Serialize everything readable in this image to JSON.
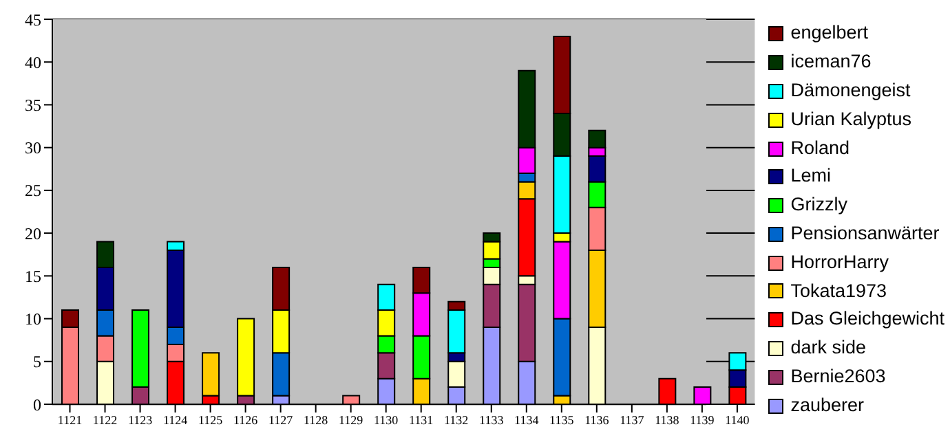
{
  "chart_data": {
    "type": "bar",
    "stacked": true,
    "categories": [
      "1121",
      "1122",
      "1123",
      "1124",
      "1125",
      "1126",
      "1127",
      "1128",
      "1129",
      "1130",
      "1131",
      "1132",
      "1133",
      "1134",
      "1135",
      "1136",
      "1137",
      "1138",
      "1139",
      "1140"
    ],
    "series": [
      {
        "name": "zauberer",
        "color": "#9999ff",
        "values": [
          null,
          null,
          null,
          null,
          null,
          null,
          1,
          null,
          null,
          3,
          null,
          2,
          9,
          5,
          null,
          null,
          null,
          null,
          null,
          null
        ]
      },
      {
        "name": "Bernie2603",
        "color": "#993366",
        "values": [
          null,
          null,
          2,
          null,
          null,
          1,
          null,
          null,
          null,
          3,
          null,
          null,
          5,
          9,
          null,
          null,
          null,
          null,
          null,
          null
        ]
      },
      {
        "name": "dark side",
        "color": "#ffffcc",
        "values": [
          null,
          5,
          null,
          null,
          null,
          null,
          null,
          null,
          null,
          null,
          null,
          3,
          2,
          1,
          null,
          9,
          null,
          null,
          null,
          null
        ]
      },
      {
        "name": "Das Gleichgewicht",
        "color": "#ff0000",
        "values": [
          null,
          null,
          null,
          5,
          1,
          null,
          null,
          null,
          null,
          null,
          null,
          null,
          null,
          9,
          null,
          null,
          null,
          3,
          null,
          2
        ]
      },
      {
        "name": "Tokata1973",
        "color": "#ffcc00",
        "values": [
          null,
          null,
          null,
          null,
          5,
          null,
          null,
          null,
          null,
          null,
          3,
          null,
          null,
          2,
          1,
          9,
          null,
          null,
          null,
          null
        ]
      },
      {
        "name": "HorrorHarry",
        "color": "#ff8080",
        "values": [
          9,
          3,
          null,
          2,
          null,
          null,
          null,
          null,
          1,
          null,
          null,
          null,
          null,
          null,
          null,
          5,
          null,
          null,
          null,
          null
        ]
      },
      {
        "name": "Pensionsanwärter",
        "color": "#0066cc",
        "values": [
          null,
          3,
          null,
          2,
          null,
          null,
          5,
          null,
          null,
          null,
          null,
          null,
          null,
          1,
          9,
          null,
          null,
          null,
          null,
          null
        ]
      },
      {
        "name": "Grizzly",
        "color": "#00ff00",
        "values": [
          null,
          null,
          9,
          null,
          null,
          null,
          null,
          null,
          null,
          2,
          5,
          null,
          1,
          null,
          null,
          3,
          null,
          null,
          null,
          null
        ]
      },
      {
        "name": "Lemi",
        "color": "#000080",
        "values": [
          null,
          5,
          null,
          9,
          null,
          null,
          null,
          null,
          null,
          null,
          null,
          1,
          null,
          null,
          null,
          3,
          null,
          null,
          null,
          2
        ]
      },
      {
        "name": "Roland",
        "color": "#ff00ff",
        "values": [
          null,
          null,
          null,
          null,
          null,
          null,
          null,
          null,
          null,
          null,
          5,
          null,
          null,
          3,
          9,
          1,
          null,
          null,
          2,
          null
        ]
      },
      {
        "name": "Urian Kalyptus",
        "color": "#ffff00",
        "values": [
          null,
          null,
          null,
          null,
          null,
          9,
          5,
          null,
          null,
          3,
          null,
          null,
          2,
          null,
          1,
          null,
          null,
          null,
          null,
          null
        ]
      },
      {
        "name": "Dämonengeist",
        "color": "#00ffff",
        "values": [
          null,
          null,
          null,
          1,
          null,
          null,
          null,
          null,
          null,
          3,
          null,
          5,
          null,
          null,
          9,
          null,
          null,
          null,
          null,
          2
        ]
      },
      {
        "name": "iceman76",
        "color": "#003300",
        "values": [
          null,
          3,
          null,
          null,
          null,
          null,
          null,
          null,
          null,
          null,
          null,
          null,
          1,
          9,
          5,
          2,
          null,
          null,
          null,
          null
        ]
      },
      {
        "name": "engelbert",
        "color": "#800000",
        "values": [
          2,
          null,
          null,
          null,
          null,
          null,
          5,
          null,
          null,
          null,
          3,
          1,
          null,
          null,
          9,
          null,
          null,
          null,
          null,
          null
        ]
      }
    ],
    "ylim": [
      0,
      45
    ],
    "yticks": [
      0,
      5,
      10,
      15,
      20,
      25,
      30,
      35,
      40,
      45
    ],
    "grid": "y",
    "legend": "right"
  }
}
